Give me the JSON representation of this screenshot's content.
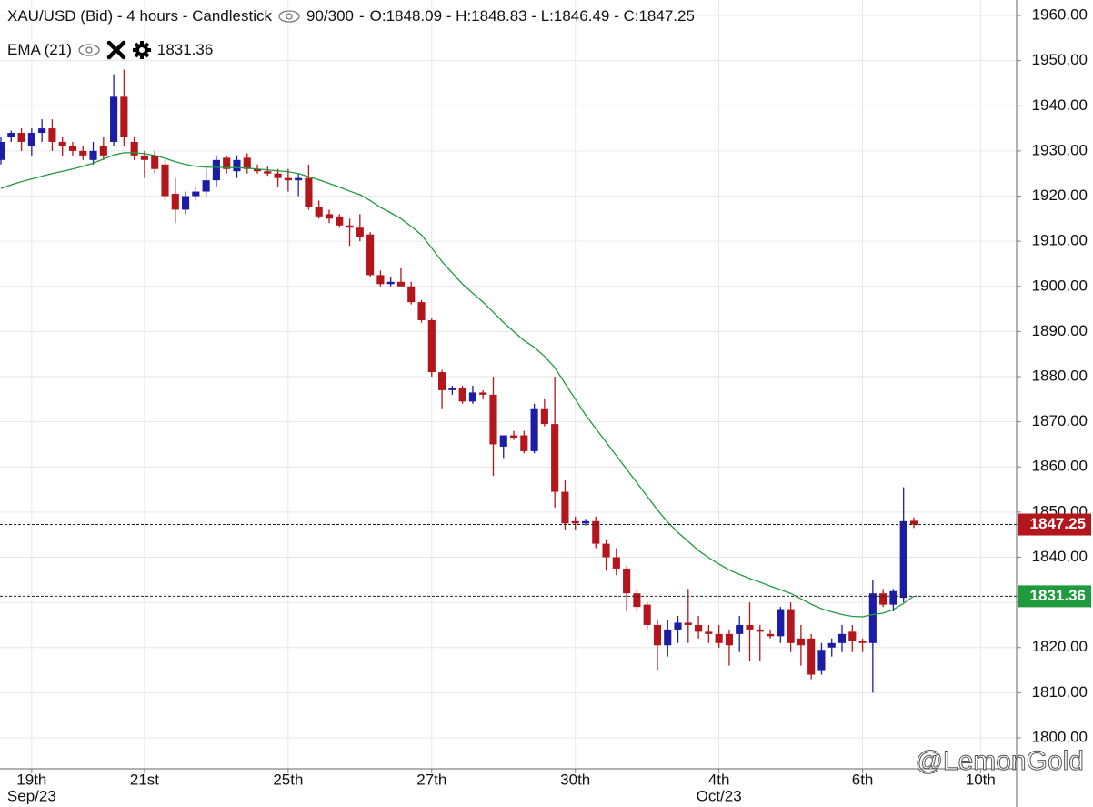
{
  "chart_data": {
    "type": "candlestick",
    "title": "XAU/USD (Bid) - 4 hours - Candlestick",
    "bar_count": "90/300",
    "ohlc_label": "O:1848.09 - H:1848.83 - L:1846.49 - C:1847.25",
    "watermark": "@LemonGold",
    "up_color": "#1c1ca6",
    "down_color": "#b3161b",
    "open": [
      1928,
      1933,
      1934,
      1931,
      1934,
      1935,
      1932,
      1931,
      1930,
      1928,
      1931,
      1932,
      1942,
      1932,
      1929,
      1929,
      1927,
      1920.5,
      1917,
      1920,
      1921,
      1923.5,
      1928.5,
      1925.5,
      1928.5,
      1926,
      1925.5,
      1925,
      1924,
      1923.5,
      1924,
      1917.5,
      1916,
      1915.5,
      1913.5,
      1913,
      1911.5,
      1902.5,
      1900.5,
      1901,
      1900,
      1896.5,
      1892.5,
      1881,
      1877,
      1877.5,
      1874.5,
      1876.5,
      1876,
      1864.5,
      1867,
      1867,
      1863.5,
      1873,
      1869.5,
      1854.5,
      1848,
      1847.5,
      1848,
      1843,
      1840,
      1837.5,
      1832,
      1829.5,
      1825,
      1820.5,
      1824,
      1825.5,
      1825,
      1823.5,
      1823,
      1823,
      1823,
      1825,
      1824,
      1823,
      1822.5,
      1828.5,
      1822,
      1822,
      1815,
      1820,
      1821,
      1823.5,
      1821.5,
      1821,
      1832,
      1829.5,
      1831,
      1848.09
    ],
    "high": [
      1933,
      1934.5,
      1935,
      1935,
      1937,
      1937,
      1933,
      1932,
      1931,
      1932,
      1933,
      1947,
      1948,
      1933,
      1930,
      1930,
      1928,
      1924,
      1921,
      1922,
      1926,
      1929,
      1929,
      1929,
      1929.5,
      1927,
      1926.5,
      1926,
      1926,
      1925,
      1927,
      1919,
      1917,
      1916,
      1915,
      1916,
      1912,
      1903.5,
      1902,
      1904,
      1901,
      1897,
      1893,
      1881.5,
      1878,
      1878,
      1878,
      1877,
      1880,
      1867,
      1868,
      1868,
      1874,
      1875,
      1880,
      1857,
      1849,
      1848.5,
      1849,
      1844,
      1842,
      1838,
      1833,
      1830,
      1826,
      1826,
      1827,
      1833,
      1827,
      1825,
      1825,
      1824,
      1827,
      1830,
      1825,
      1824,
      1829,
      1830,
      1825,
      1823,
      1821,
      1822,
      1825,
      1825,
      1822,
      1835,
      1833,
      1833,
      1855.5,
      1848.83
    ],
    "low": [
      1927,
      1932,
      1930,
      1929,
      1932,
      1930,
      1929,
      1929,
      1928,
      1927,
      1928,
      1931,
      1931,
      1928,
      1924,
      1925,
      1919,
      1914,
      1916,
      1919,
      1920,
      1922,
      1925,
      1924,
      1925,
      1925,
      1924.5,
      1922,
      1921,
      1920,
      1917,
      1915,
      1914,
      1913,
      1909,
      1910,
      1902,
      1900,
      1900,
      1900,
      1896,
      1892,
      1880,
      1873,
      1876,
      1874,
      1874,
      1875,
      1858,
      1862,
      1866,
      1863,
      1863,
      1869,
      1851,
      1846,
      1846,
      1847,
      1842,
      1837,
      1836,
      1828,
      1828,
      1824,
      1815,
      1818,
      1821,
      1821,
      1822,
      1821,
      1820,
      1816,
      1819,
      1817,
      1817,
      1822,
      1821,
      1819,
      1816,
      1813,
      1814,
      1818,
      1819,
      1819,
      1819,
      1810,
      1829,
      1828,
      1830,
      1846.49
    ],
    "close": [
      1932,
      1934,
      1932,
      1934,
      1935,
      1932,
      1931,
      1930,
      1929,
      1930,
      1929,
      1942,
      1933,
      1929,
      1928,
      1926,
      1920,
      1917,
      1920,
      1921,
      1923.5,
      1928,
      1926,
      1928,
      1926,
      1925.5,
      1925,
      1924,
      1923.5,
      1924,
      1917.5,
      1915.5,
      1915,
      1913.5,
      1913,
      1911,
      1902.5,
      1900.5,
      1901,
      1900,
      1896.5,
      1892.5,
      1881,
      1877,
      1877.5,
      1874.5,
      1876.5,
      1876,
      1865,
      1867,
      1866.5,
      1863.5,
      1873,
      1869.5,
      1854.5,
      1847.5,
      1847.5,
      1848,
      1843,
      1840,
      1837.5,
      1832,
      1829,
      1825,
      1820.5,
      1824,
      1825.5,
      1825,
      1823.5,
      1823,
      1821,
      1820.5,
      1825,
      1824,
      1823.5,
      1822.5,
      1828.5,
      1821,
      1820.5,
      1814,
      1819.5,
      1821,
      1823,
      1821.5,
      1821,
      1832,
      1829.5,
      1832.5,
      1848,
      1847.25
    ],
    "overlay": {
      "name": "EMA (21)",
      "color": "#1f9a3c",
      "values": [
        1921.7,
        1922.5,
        1923.2,
        1923.8,
        1924.4,
        1925,
        1925.5,
        1926,
        1926.6,
        1927.3,
        1928.2,
        1929.1,
        1929.6,
        1929.6,
        1929.4,
        1929,
        1928.4,
        1927.6,
        1927,
        1926.6,
        1926.4,
        1926.4,
        1926.3,
        1926.3,
        1926.2,
        1926,
        1925.8,
        1925.6,
        1925.4,
        1925,
        1924.3,
        1923.6,
        1922.8,
        1922,
        1921.1,
        1920.3,
        1919,
        1917.5,
        1916.3,
        1915,
        1913.3,
        1911.4,
        1908.5,
        1905.5,
        1903,
        1900.5,
        1898.5,
        1896.5,
        1894.3,
        1892,
        1890,
        1888,
        1886.5,
        1884.5,
        1882,
        1878.5,
        1875,
        1871.5,
        1868.5,
        1865.5,
        1862.5,
        1859.5,
        1856.5,
        1853.5,
        1850.5,
        1847.8,
        1845.5,
        1843.5,
        1841.5,
        1839.9,
        1838.5,
        1837.2,
        1836.2,
        1835.3,
        1834.5,
        1833.6,
        1832.8,
        1832,
        1830.8,
        1829.6,
        1828.6,
        1827.9,
        1827.3,
        1826.9,
        1826.8,
        1827.3,
        1827.6,
        1828.4,
        1829.8,
        1831.36
      ]
    },
    "xlim": [
      -0.09,
      99.02
    ],
    "xticks": [
      {
        "value": 3,
        "label": "19th"
      },
      {
        "value": 14,
        "label": "21st"
      },
      {
        "value": 28,
        "label": "25th"
      },
      {
        "value": 42,
        "label": "27th"
      },
      {
        "value": 56,
        "label": "30th"
      },
      {
        "value": 70,
        "label": "4th"
      },
      {
        "value": 84,
        "label": "6th"
      },
      {
        "value": 95.5,
        "label": "10th"
      }
    ],
    "month_labels": [
      {
        "value": 3,
        "label": "Sep/23"
      },
      {
        "value": 70,
        "label": "Oct/23"
      }
    ],
    "ylim": [
      1793.15,
      1963.43
    ],
    "yticks": [
      {
        "value": 1800,
        "label": "1800.00"
      },
      {
        "value": 1810,
        "label": "1810.00"
      },
      {
        "value": 1820,
        "label": "1820.00"
      },
      {
        "value": 1830,
        "label": "1830.00"
      },
      {
        "value": 1840,
        "label": "1840.00"
      },
      {
        "value": 1850,
        "label": "1850.00"
      },
      {
        "value": 1860,
        "label": "1860.00"
      },
      {
        "value": 1870,
        "label": "1870.00"
      },
      {
        "value": 1880,
        "label": "1880.00"
      },
      {
        "value": 1890,
        "label": "1890.00"
      },
      {
        "value": 1900,
        "label": "1900.00"
      },
      {
        "value": 1910,
        "label": "1910.00"
      },
      {
        "value": 1920,
        "label": "1920.00"
      },
      {
        "value": 1930,
        "label": "1930.00"
      },
      {
        "value": 1940,
        "label": "1940.00"
      },
      {
        "value": 1950,
        "label": "1950.00"
      },
      {
        "value": 1960,
        "label": "1960.00"
      }
    ],
    "grid": true
  }
}
